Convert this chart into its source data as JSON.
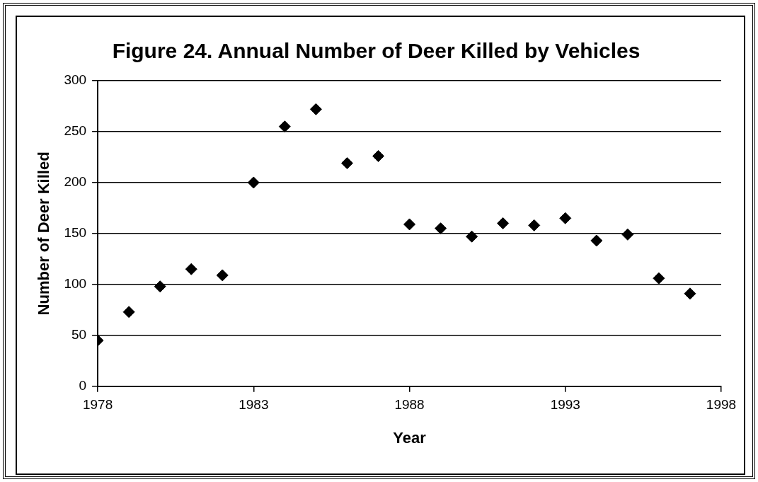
{
  "chart_data": {
    "type": "scatter",
    "title": "Figure 24. Annual Number of Deer Killed by Vehicles",
    "xlabel": "Year",
    "ylabel": "Number of Deer Killed",
    "x": [
      1978,
      1979,
      1980,
      1981,
      1982,
      1983,
      1984,
      1985,
      1986,
      1987,
      1988,
      1989,
      1990,
      1991,
      1992,
      1993,
      1994,
      1995,
      1996,
      1997
    ],
    "series": [
      {
        "color": "#000000",
        "values": [
          45,
          73,
          98,
          115,
          109,
          200,
          255,
          272,
          219,
          226,
          159,
          155,
          147,
          160,
          158,
          165,
          143,
          149,
          106,
          91
        ]
      }
    ],
    "xlim": [
      1978,
      1998
    ],
    "xticks": [
      1978,
      1983,
      1988,
      1993,
      1998
    ],
    "ylim": [
      0,
      300
    ],
    "yticks": [
      0,
      50,
      100,
      150,
      200,
      250,
      300
    ],
    "grid": "y",
    "legend": false,
    "marker": "diamond"
  }
}
